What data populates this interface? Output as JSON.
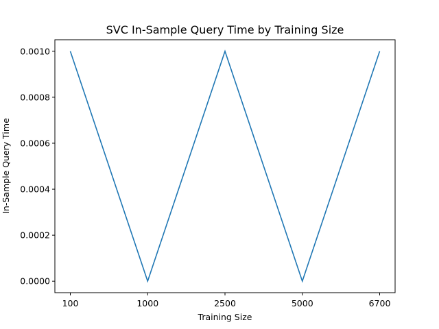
{
  "chart_data": {
    "type": "line",
    "title": "SVC In-Sample Query Time by Training Size",
    "xlabel": "Training Size",
    "ylabel": "In-Sample Query Time",
    "categories": [
      "100",
      "1000",
      "2500",
      "5000",
      "6700"
    ],
    "series": [
      {
        "values": [
          0.001,
          0.0,
          0.001,
          0.0,
          0.001
        ],
        "color": "#1f77b4"
      }
    ],
    "yticks": [
      "0.0000",
      "0.0002",
      "0.0004",
      "0.0006",
      "0.0008",
      "0.0010"
    ],
    "ytick_values": [
      0.0,
      0.0002,
      0.0004,
      0.0006,
      0.0008,
      0.001
    ],
    "ylim": [
      -5e-05,
      0.00105
    ],
    "grid": false,
    "legend": "none"
  }
}
